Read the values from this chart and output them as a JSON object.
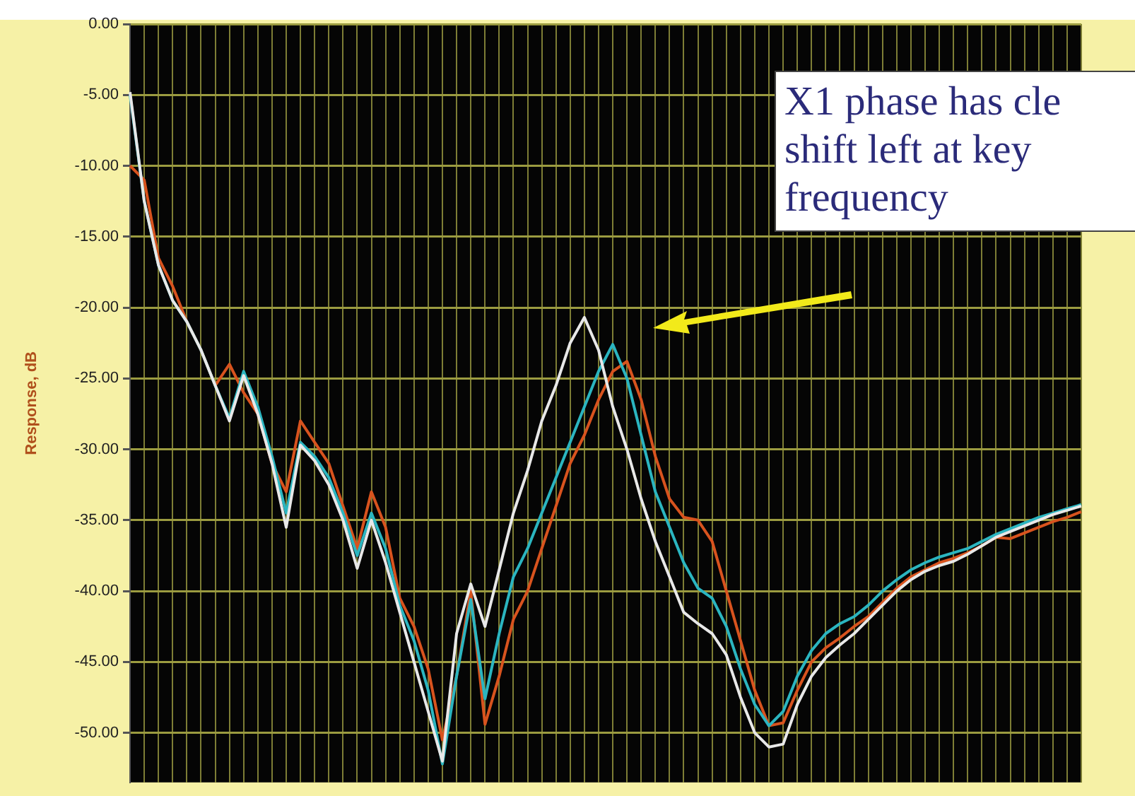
{
  "chart_data": {
    "type": "line",
    "ylabel": "Response, dB",
    "annotations": [
      "X1 phase has cle shift left at key frequency"
    ],
    "categories": [
      null,
      null,
      null,
      null,
      null,
      null,
      null,
      null,
      null,
      null,
      null,
      null,
      null,
      null,
      null,
      null,
      null,
      null,
      null,
      null,
      null,
      null,
      null,
      null,
      null,
      null,
      null,
      null,
      null,
      null,
      null,
      null,
      null,
      null,
      null,
      null,
      null,
      null,
      null,
      null,
      null,
      null,
      null,
      null,
      null,
      null,
      null,
      null,
      null,
      null,
      null,
      null,
      null,
      null,
      null,
      null,
      null,
      null,
      null,
      null,
      null,
      null,
      null,
      null,
      null,
      null,
      null,
      null
    ],
    "series": [
      {
        "color": "#e8e8e8",
        "values": [
          -4.8,
          -12.5,
          -17,
          -19.5,
          -21,
          -23,
          -25.5,
          -28,
          -24.8,
          -27.5,
          -31,
          -35.5,
          -29.7,
          -30.8,
          -32.5,
          -35,
          -38.4,
          -35,
          -38,
          -41.5,
          -45,
          -48.5,
          -52,
          -43,
          -39.5,
          -42.5,
          -38.5,
          -34.5,
          -31.5,
          -28,
          -25.5,
          -22.5,
          -20.7,
          -23,
          -27,
          -30,
          -33.5,
          -36.5,
          -39,
          -41.5,
          -42.3,
          -43,
          -44.5,
          -47.5,
          -50,
          -51,
          -50.8,
          -48,
          -46,
          -44.7,
          -43.8,
          -43,
          -42,
          -41,
          -40,
          -39.2,
          -38.6,
          -38.2,
          -37.9,
          -37.4,
          -36.8,
          -36.2,
          -35.8,
          -35.4,
          -35,
          -34.6,
          -34.3,
          -34
        ]
      },
      {
        "color": "#2bb5c0",
        "values": [
          -5,
          -12.5,
          -17,
          -19.5,
          -21,
          -23,
          -25.5,
          -27.8,
          -24.5,
          -27,
          -30.5,
          -34.5,
          -29.5,
          -30.5,
          -32,
          -34.5,
          -37.5,
          -34.5,
          -37,
          -41,
          -43.5,
          -47,
          -52.2,
          -46,
          -40.6,
          -47.6,
          -43,
          -39,
          -37,
          -34.5,
          -32,
          -29.5,
          -27,
          -24.5,
          -22.6,
          -25,
          -29,
          -33,
          -35.5,
          -38,
          -39.8,
          -40.5,
          -42.5,
          -45.5,
          -48,
          -49.5,
          -48.5,
          -46,
          -44.2,
          -43,
          -42.3,
          -41.8,
          -41,
          -40,
          -39.2,
          -38.5,
          -38,
          -37.6,
          -37.3,
          -37,
          -36.5,
          -36,
          -35.6,
          -35.2,
          -34.8,
          -34.5,
          -34.2,
          -33.9
        ]
      },
      {
        "color": "#d8531e",
        "values": [
          -10,
          -11,
          -16.5,
          -18.5,
          -21,
          -23,
          -25.5,
          -24,
          -26,
          -27.5,
          -31,
          -33,
          -28,
          -29.5,
          -31,
          -34,
          -37,
          -33,
          -35.5,
          -40.5,
          -42.5,
          -45.5,
          -50.5,
          -46,
          -40,
          -49.4,
          -46,
          -42,
          -40,
          -37,
          -34,
          -31,
          -29,
          -26.5,
          -24.5,
          -23.8,
          -26.5,
          -30.5,
          -33.5,
          -34.8,
          -35,
          -36.5,
          -40,
          -43.5,
          -47,
          -49.5,
          -49.3,
          -47,
          -45,
          -44,
          -43.3,
          -42.5,
          -41.8,
          -40.8,
          -39.8,
          -39,
          -38.5,
          -38,
          -37.7,
          -37.3,
          -36.8,
          -36.2,
          -36.3,
          -35.9,
          -35.5,
          -35.1,
          -34.8,
          -34.4
        ]
      }
    ],
    "ylim": [
      -53.5,
      0
    ],
    "yticks": [
      {
        "value": 0,
        "label": "0.00"
      },
      {
        "value": -5,
        "label": "-5.00"
      },
      {
        "value": -10,
        "label": "-10.00"
      },
      {
        "value": -15,
        "label": "-15.00"
      },
      {
        "value": -20,
        "label": "-20.00"
      },
      {
        "value": -25,
        "label": "-25.00"
      },
      {
        "value": -30,
        "label": "-30.00"
      },
      {
        "value": -35,
        "label": "-35.00"
      },
      {
        "value": -40,
        "label": "-40.00"
      },
      {
        "value": -45,
        "label": "-45.00"
      },
      {
        "value": -50,
        "label": "-50.00"
      }
    ],
    "tick_labels": "y",
    "grid": true,
    "legend": false,
    "marker": "none",
    "line_style": "solid"
  }
}
